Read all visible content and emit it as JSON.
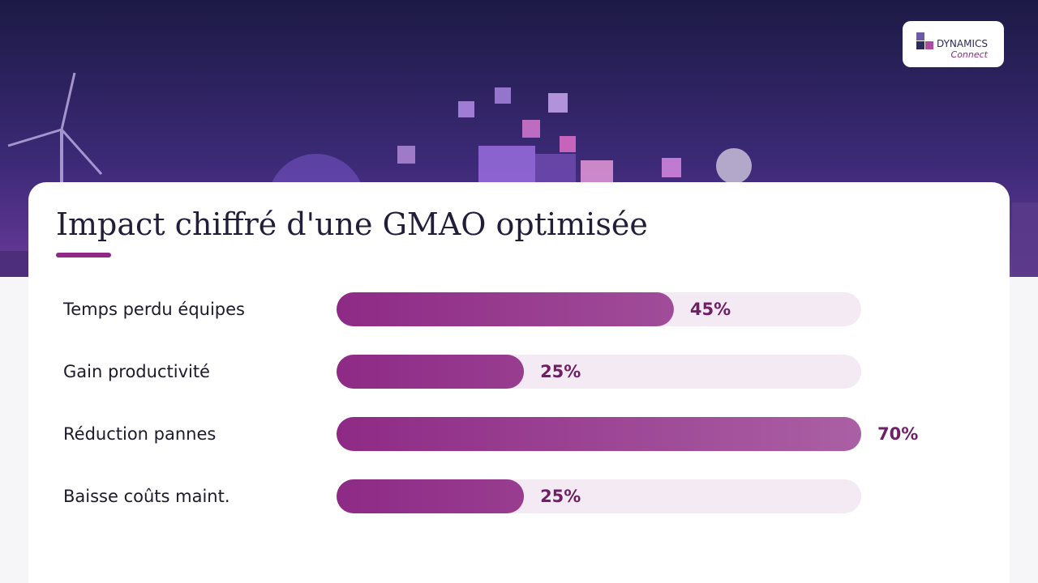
{
  "logo": {
    "name": "DYNAMICS",
    "tagline": "Connect"
  },
  "chart_data": {
    "type": "hbar",
    "title": "Impact chiffré d'une GMAO optimisée",
    "categories": [
      "Temps perdu équipes",
      "Gain productivité",
      "Réduction pannes",
      "Baisse coûts maint."
    ],
    "values": [
      45,
      25,
      70,
      25
    ],
    "value_labels": [
      "45%",
      "25%",
      "70%",
      "25%"
    ],
    "color": "#8e2a85",
    "track_color": "#f3eaf3",
    "xlim": [
      0,
      70
    ]
  }
}
